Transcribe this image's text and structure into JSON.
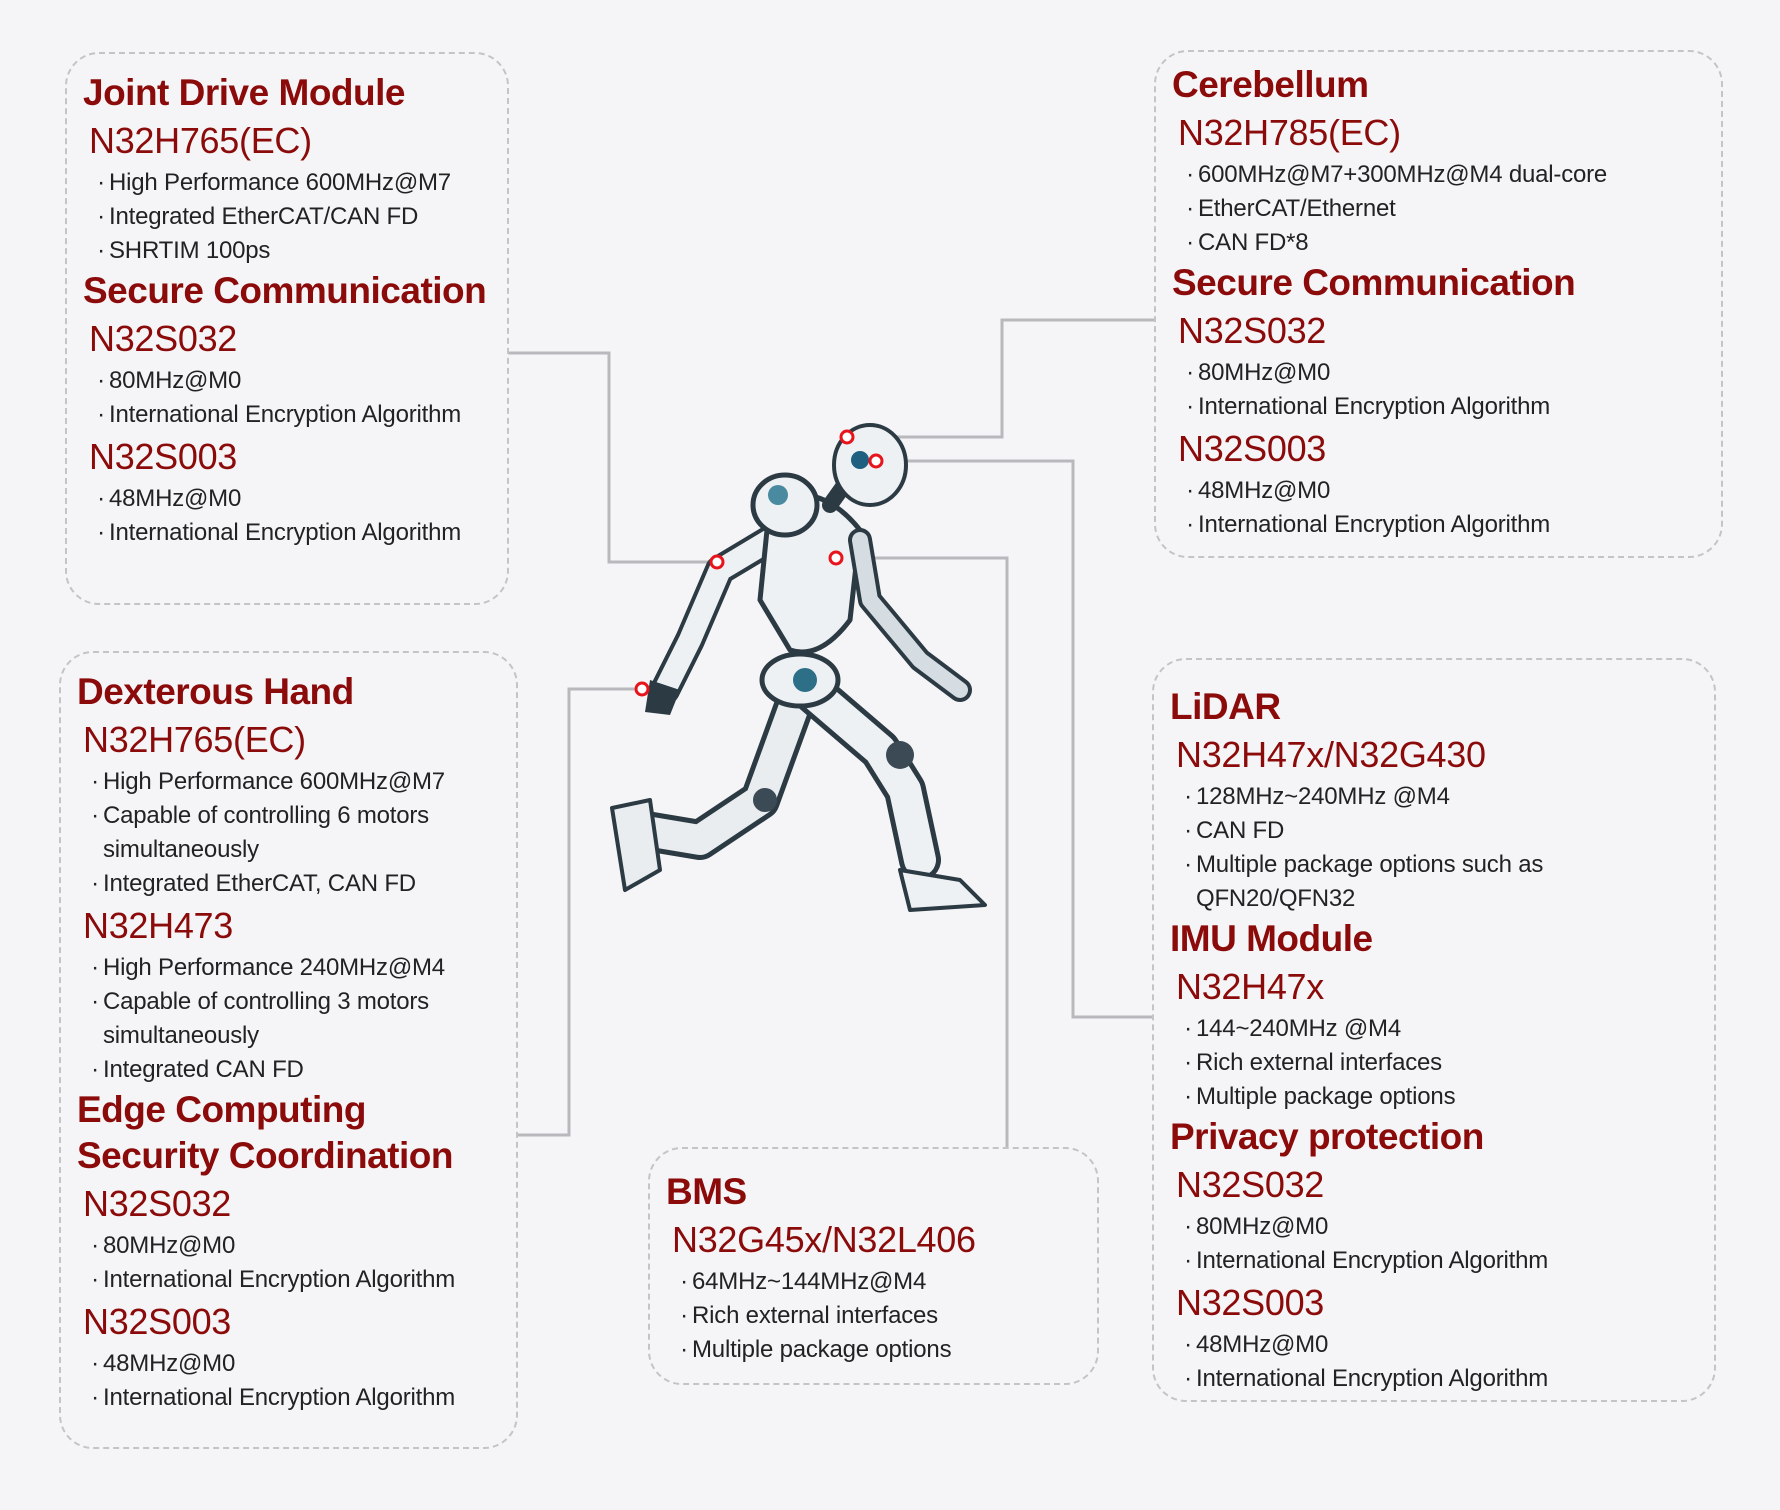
{
  "colors": {
    "accent": "#8b0a0a",
    "text": "#222222",
    "connector": "#b9b9bd",
    "marker": "#e8141c",
    "background": "#f5f5f7"
  },
  "panels": [
    {
      "id": "joint-drive",
      "blocks": [
        {
          "t": "title",
          "text": "Joint Drive Module"
        },
        {
          "t": "model",
          "text": "N32H765(EC)"
        },
        {
          "t": "bullet",
          "text": "High Performance 600MHz@M7"
        },
        {
          "t": "bullet",
          "text": "Integrated EtherCAT/CAN FD"
        },
        {
          "t": "bullet",
          "text": "SHRTIM  100ps"
        },
        {
          "t": "title",
          "text": "Secure Communication"
        },
        {
          "t": "model",
          "text": "N32S032"
        },
        {
          "t": "bullet",
          "text": "80MHz@M0"
        },
        {
          "t": "bullet",
          "text": "International Encryption Algorithm"
        },
        {
          "t": "model",
          "text": "N32S003"
        },
        {
          "t": "bullet",
          "text": "48MHz@M0"
        },
        {
          "t": "bullet",
          "text": "International Encryption Algorithm"
        }
      ]
    },
    {
      "id": "dexterous-hand",
      "blocks": [
        {
          "t": "title",
          "text": "Dexterous Hand"
        },
        {
          "t": "model",
          "text": "N32H765(EC)"
        },
        {
          "t": "bullet",
          "text": "High Performance 600MHz@M7"
        },
        {
          "t": "bullet",
          "text": "Capable of controlling 6 motors simultaneously"
        },
        {
          "t": "bullet",
          "text": "Integrated EtherCAT, CAN FD"
        },
        {
          "t": "model",
          "text": "N32H473"
        },
        {
          "t": "bullet",
          "text": "High Performance 240MHz@M4"
        },
        {
          "t": "bullet",
          "text": "Capable of controlling 3 motors simultaneously"
        },
        {
          "t": "bullet",
          "text": "Integrated CAN FD"
        },
        {
          "t": "title",
          "text": "Edge Computing Security Coordination"
        },
        {
          "t": "model",
          "text": "N32S032"
        },
        {
          "t": "bullet",
          "text": "80MHz@M0"
        },
        {
          "t": "bullet",
          "text": "International Encryption Algorithm"
        },
        {
          "t": "model",
          "text": "N32S003"
        },
        {
          "t": "bullet",
          "text": "48MHz@M0"
        },
        {
          "t": "bullet",
          "text": "International Encryption Algorithm"
        }
      ]
    },
    {
      "id": "bms",
      "blocks": [
        {
          "t": "title",
          "text": "BMS"
        },
        {
          "t": "model",
          "text": "N32G45x/N32L406"
        },
        {
          "t": "bullet",
          "text": "64MHz~144MHz@M4"
        },
        {
          "t": "bullet",
          "text": "Rich external interfaces"
        },
        {
          "t": "bullet",
          "text": "Multiple package options"
        }
      ]
    },
    {
      "id": "cerebellum",
      "blocks": [
        {
          "t": "title",
          "text": "Cerebellum"
        },
        {
          "t": "model",
          "text": "N32H785(EC)"
        },
        {
          "t": "bullet",
          "text": "600MHz@M7+300MHz@M4 dual-core"
        },
        {
          "t": "bullet",
          "text": "EtherCAT/Ethernet"
        },
        {
          "t": "bullet",
          "text": "CAN FD*8"
        },
        {
          "t": "title",
          "text": "Secure Communication"
        },
        {
          "t": "model",
          "text": "N32S032"
        },
        {
          "t": "bullet",
          "text": "80MHz@M0"
        },
        {
          "t": "bullet",
          "text": "International Encryption Algorithm"
        },
        {
          "t": "model",
          "text": "N32S003"
        },
        {
          "t": "bullet",
          "text": "48MHz@M0"
        },
        {
          "t": "bullet",
          "text": "International Encryption Algorithm"
        }
      ]
    },
    {
      "id": "lidar-imu",
      "blocks": [
        {
          "t": "title",
          "text": "LiDAR"
        },
        {
          "t": "model",
          "text": "N32H47x/N32G430"
        },
        {
          "t": "bullet",
          "text": "128MHz~240MHz @M4"
        },
        {
          "t": "bullet",
          "text": "CAN FD"
        },
        {
          "t": "bullet",
          "text": "Multiple package options such as QFN20/QFN32"
        },
        {
          "t": "title",
          "text": "IMU Module"
        },
        {
          "t": "model",
          "text": "N32H47x"
        },
        {
          "t": "bullet",
          "text": "144~240MHz @M4"
        },
        {
          "t": "bullet",
          "text": "Rich external interfaces"
        },
        {
          "t": "bullet",
          "text": "Multiple package options"
        },
        {
          "t": "title",
          "text": "Privacy protection"
        },
        {
          "t": "model",
          "text": "N32S032"
        },
        {
          "t": "bullet",
          "text": "80MHz@M0"
        },
        {
          "t": "bullet",
          "text": "International Encryption Algorithm"
        },
        {
          "t": "model",
          "text": "N32S003"
        },
        {
          "t": "bullet",
          "text": "48MHz@M0"
        },
        {
          "t": "bullet",
          "text": "International Encryption Algorithm"
        }
      ]
    }
  ]
}
